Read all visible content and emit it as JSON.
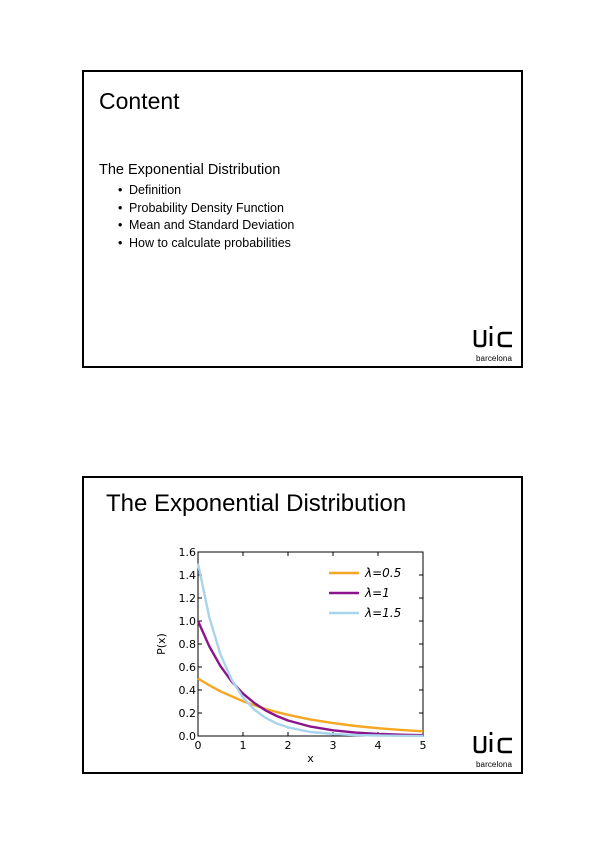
{
  "slides": [
    {
      "title": "Content",
      "subheading": "The Exponential Distribution",
      "bullets": [
        "Definition",
        "Probability Density Function",
        "Mean and Standard Deviation",
        "How to calculate probabilities"
      ],
      "logo": {
        "text": "uic",
        "subtext": "barcelona"
      }
    },
    {
      "title": "The Exponential Distribution",
      "logo": {
        "text": "uic",
        "subtext": "barcelona"
      }
    }
  ],
  "chart_data": {
    "type": "line",
    "title": "",
    "xlabel": "x",
    "ylabel": "P(x)",
    "xlim": [
      0,
      5
    ],
    "ylim": [
      0,
      1.6
    ],
    "xticks": [
      0,
      1,
      2,
      3,
      4,
      5
    ],
    "yticks": [
      0.0,
      0.2,
      0.4,
      0.6,
      0.8,
      1.0,
      1.2,
      1.4,
      1.6
    ],
    "ytick_labels": [
      "0.0",
      "0.2",
      "0.4",
      "0.6",
      "0.8",
      "1.0",
      "1.2",
      "1.4",
      "1.6"
    ],
    "legend_position": "top-right",
    "x": [
      0,
      0.25,
      0.5,
      0.75,
      1,
      1.25,
      1.5,
      1.75,
      2,
      2.5,
      3,
      3.5,
      4,
      4.5,
      5
    ],
    "series": [
      {
        "name": "λ=0.5",
        "color": "#f5a623",
        "values": [
          0.5,
          0.441,
          0.389,
          0.344,
          0.303,
          0.268,
          0.236,
          0.208,
          0.184,
          0.143,
          0.112,
          0.087,
          0.068,
          0.053,
          0.041
        ]
      },
      {
        "name": "λ=1",
        "color": "#8b138b",
        "values": [
          1.0,
          0.779,
          0.607,
          0.472,
          0.368,
          0.287,
          0.223,
          0.174,
          0.135,
          0.082,
          0.05,
          0.03,
          0.018,
          0.011,
          0.007
        ]
      },
      {
        "name": "λ=1.5",
        "color": "#a8d4ec",
        "values": [
          1.5,
          1.031,
          0.708,
          0.487,
          0.335,
          0.23,
          0.158,
          0.109,
          0.075,
          0.035,
          0.017,
          0.008,
          0.004,
          0.002,
          0.001
        ]
      }
    ]
  }
}
